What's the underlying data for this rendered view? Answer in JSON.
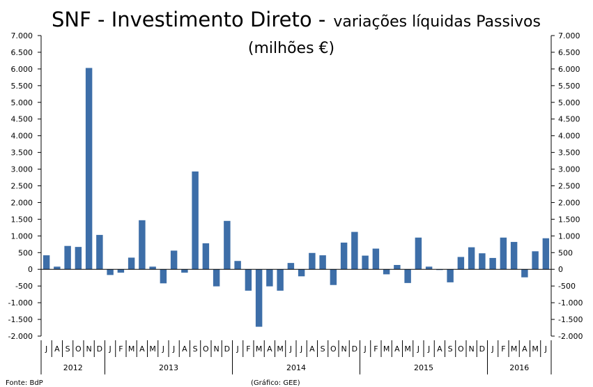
{
  "chart_data": {
    "type": "bar",
    "title_main": "SNF - Investimento Direto -",
    "title_sub": "variações líquidas Passivos",
    "title_line2": "(milhões €)",
    "ylim": [
      -2000,
      7000
    ],
    "yticks": [
      -2000,
      -1500,
      -1000,
      -500,
      0,
      500,
      1000,
      1500,
      2000,
      2500,
      3000,
      3500,
      4000,
      4500,
      5000,
      5500,
      6000,
      6500,
      7000
    ],
    "ytick_labels": [
      "-2.000",
      "-1.500",
      "-1.000",
      "-500",
      "0",
      "500",
      "1.000",
      "1.500",
      "2.000",
      "2.500",
      "3.000",
      "3.500",
      "4.000",
      "4.500",
      "5.000",
      "5.500",
      "6.000",
      "6.500",
      "7.000"
    ],
    "categories": [
      "J",
      "A",
      "S",
      "O",
      "N",
      "D",
      "J",
      "F",
      "M",
      "A",
      "M",
      "J",
      "J",
      "A",
      "S",
      "O",
      "N",
      "D",
      "J",
      "F",
      "M",
      "A",
      "M",
      "J",
      "J",
      "A",
      "S",
      "O",
      "N",
      "D",
      "J",
      "F",
      "M",
      "A",
      "M",
      "J",
      "J",
      "A",
      "S",
      "O",
      "N",
      "D",
      "J",
      "F",
      "M",
      "A",
      "M",
      "J"
    ],
    "values": [
      420,
      80,
      700,
      670,
      6030,
      1030,
      -170,
      -100,
      350,
      1470,
      80,
      -420,
      560,
      -100,
      2930,
      780,
      -510,
      1450,
      250,
      -640,
      -1720,
      -510,
      -640,
      190,
      -210,
      490,
      420,
      -470,
      800,
      1120,
      410,
      620,
      -150,
      130,
      -410,
      950,
      80,
      -20,
      -390,
      370,
      660,
      480,
      340,
      950,
      820,
      -240,
      540,
      930
    ],
    "years": [
      {
        "label": "2012",
        "start": 0,
        "end": 6
      },
      {
        "label": "2013",
        "start": 6,
        "end": 18
      },
      {
        "label": "2014",
        "start": 18,
        "end": 30
      },
      {
        "label": "2015",
        "start": 30,
        "end": 42
      },
      {
        "label": "2016",
        "start": 42,
        "end": 48
      }
    ],
    "bar_color": "#3d6ea8",
    "grid": false,
    "source": "Fonte: BdP",
    "credit": "(Gráfico: GEE)"
  }
}
